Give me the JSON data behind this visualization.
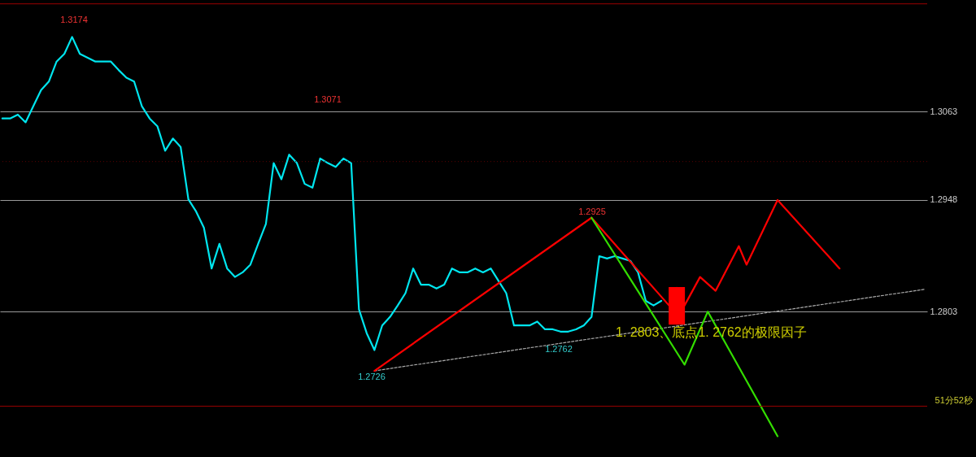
{
  "chart_data": {
    "type": "line",
    "ylim": [
      1.2614,
      1.3208
    ],
    "yticks": [
      1.2803,
      1.2948,
      1.3063
    ],
    "grid": "y",
    "tick_labels": "y",
    "categories": [
      null,
      null,
      null,
      null,
      null,
      null,
      null,
      null,
      null,
      null,
      null,
      null,
      null,
      null,
      null,
      null,
      null,
      null,
      null,
      null,
      null,
      null,
      null,
      null,
      null,
      null,
      null,
      null,
      null,
      null,
      null,
      null,
      null,
      null,
      null,
      null,
      null,
      null,
      null,
      null,
      null,
      null,
      null,
      null,
      null,
      null,
      null,
      null,
      null,
      null,
      null,
      null,
      null,
      null,
      null,
      null,
      null,
      null,
      null,
      null,
      null,
      null,
      null,
      null,
      null,
      null,
      null,
      null,
      null,
      null,
      null,
      null,
      null,
      null,
      null,
      null,
      null,
      null,
      null,
      null,
      null,
      null,
      null,
      null,
      null,
      null,
      null,
      null,
      null,
      null,
      null,
      null,
      null,
      null,
      null,
      null,
      null,
      null,
      null,
      null,
      null,
      null,
      null,
      null,
      null,
      null,
      null,
      null,
      null,
      null,
      null,
      null,
      null,
      null,
      null,
      null,
      null,
      null,
      null,
      null
    ],
    "series": [
      {
        "color": "#00e5ee",
        "values": [
          1.3054,
          1.3054,
          1.3059,
          1.3049,
          1.307,
          1.3091,
          1.3102,
          1.3128,
          1.3138,
          1.316,
          1.3138,
          1.3133,
          1.3128,
          1.3128,
          1.3128,
          1.3117,
          1.3107,
          1.3102,
          1.307,
          1.3054,
          1.3044,
          1.3012,
          1.3028,
          1.3017,
          1.2949,
          1.2933,
          1.2912,
          1.2859,
          1.2891,
          1.2859,
          1.2848,
          1.2854,
          1.2864,
          1.2891,
          1.2917,
          1.2996,
          1.2975,
          1.3007,
          1.2996,
          1.2969,
          1.2964,
          1.3002,
          1.2996,
          1.2991,
          1.3002,
          1.2996,
          1.2806,
          1.2775,
          1.2753,
          1.2785,
          1.2796,
          1.2811,
          1.2827,
          1.2859,
          1.2838,
          1.2838,
          1.2833,
          1.2838,
          1.2859,
          1.2854,
          1.2854,
          1.2859,
          1.2854,
          1.2859,
          1.2843,
          1.2827,
          1.2785,
          1.2785,
          1.2785,
          1.279,
          1.278,
          1.278,
          1.2777,
          1.2777,
          1.278,
          1.2785,
          1.2796,
          1.2875,
          1.2872,
          1.2875,
          1.2872,
          1.2869,
          1.2854,
          1.2817,
          1.2811,
          1.2817,
          null,
          null,
          null,
          null,
          null,
          null,
          null,
          null,
          null,
          null,
          null,
          null,
          null,
          null,
          null,
          null,
          null,
          null,
          null,
          null,
          null,
          null,
          null,
          null,
          null,
          null,
          null,
          null,
          null,
          null,
          null,
          null,
          null,
          null
        ]
      },
      {
        "type": "line",
        "color": "#aaaaaa",
        "line_style": "dashed",
        "values": [
          null,
          null,
          null,
          null,
          null,
          null,
          null,
          null,
          null,
          null,
          null,
          null,
          null,
          null,
          null,
          null,
          null,
          null,
          null,
          null,
          null,
          null,
          null,
          null,
          null,
          null,
          null,
          null,
          null,
          null,
          null,
          null,
          null,
          null,
          null,
          null,
          null,
          null,
          null,
          null,
          null,
          null,
          null,
          null,
          null,
          null,
          null,
          null,
          1.2726,
          null,
          null,
          null,
          null,
          null,
          null,
          null,
          null,
          null,
          null,
          null,
          null,
          null,
          null,
          null,
          null,
          null,
          null,
          null,
          null,
          null,
          null,
          null,
          null,
          null,
          null,
          null,
          null,
          null,
          null,
          null,
          null,
          null,
          null,
          null,
          null,
          null,
          null,
          null,
          null,
          null,
          null,
          null,
          null,
          null,
          null,
          null,
          null,
          null,
          null,
          null,
          null,
          null,
          null,
          null,
          null,
          null,
          null,
          null,
          null,
          null,
          null,
          null,
          null,
          null,
          null,
          null,
          null,
          null,
          null,
          1.2832
        ]
      },
      {
        "type": "line",
        "color": "#ff0000",
        "values": [
          null,
          null,
          null,
          null,
          null,
          null,
          null,
          null,
          null,
          null,
          null,
          null,
          null,
          null,
          null,
          null,
          null,
          null,
          null,
          null,
          null,
          null,
          null,
          null,
          null,
          null,
          null,
          null,
          null,
          null,
          null,
          null,
          null,
          null,
          null,
          null,
          null,
          null,
          null,
          null,
          null,
          null,
          null,
          null,
          null,
          null,
          null,
          null,
          1.2726,
          null,
          null,
          null,
          null,
          null,
          null,
          null,
          null,
          null,
          null,
          null,
          null,
          null,
          null,
          null,
          null,
          null,
          null,
          null,
          null,
          null,
          null,
          null,
          null,
          null,
          null,
          null,
          1.2925,
          null,
          null,
          null,
          null,
          null,
          null,
          null,
          null,
          null,
          1.2811,
          null,
          1.2811,
          null,
          1.2848,
          null,
          1.283,
          null,
          null,
          1.2888,
          1.2864,
          null,
          null,
          null,
          1.2948,
          null,
          null,
          null,
          null,
          null,
          null,
          null,
          1.2859,
          null,
          null,
          null,
          null,
          null,
          null,
          null,
          null,
          null,
          null,
          null
        ]
      },
      {
        "type": "line",
        "color": "#33dd00",
        "values": [
          null,
          null,
          null,
          null,
          null,
          null,
          null,
          null,
          null,
          null,
          null,
          null,
          null,
          null,
          null,
          null,
          null,
          null,
          null,
          null,
          null,
          null,
          null,
          null,
          null,
          null,
          null,
          null,
          null,
          null,
          null,
          null,
          null,
          null,
          null,
          null,
          null,
          null,
          null,
          null,
          null,
          null,
          null,
          null,
          null,
          null,
          null,
          null,
          null,
          null,
          null,
          null,
          null,
          null,
          null,
          null,
          null,
          null,
          null,
          null,
          null,
          null,
          null,
          null,
          null,
          null,
          null,
          null,
          null,
          null,
          null,
          null,
          null,
          null,
          null,
          null,
          1.2925,
          null,
          null,
          null,
          null,
          null,
          null,
          null,
          null,
          null,
          null,
          null,
          1.2734,
          null,
          null,
          1.2803,
          null,
          null,
          null,
          null,
          null,
          null,
          null,
          null,
          1.2641,
          null,
          null,
          null,
          null,
          null,
          null,
          null,
          null,
          null,
          null,
          null,
          null,
          null,
          null,
          null,
          null,
          null,
          null,
          null
        ]
      },
      {
        "type": "candlestick",
        "color": "#ff0000",
        "ohlc": [
          null,
          null,
          null,
          null,
          null,
          null,
          null,
          null,
          null,
          null,
          null,
          null,
          null,
          null,
          null,
          null,
          null,
          null,
          null,
          null,
          null,
          null,
          null,
          null,
          null,
          null,
          null,
          null,
          null,
          null,
          null,
          null,
          null,
          null,
          null,
          null,
          null,
          null,
          null,
          null,
          null,
          null,
          null,
          null,
          null,
          null,
          null,
          null,
          null,
          null,
          null,
          null,
          null,
          null,
          null,
          null,
          null,
          null,
          null,
          null,
          null,
          null,
          null,
          null,
          null,
          null,
          null,
          null,
          null,
          null,
          null,
          null,
          null,
          null,
          null,
          null,
          null,
          null,
          null,
          null,
          null,
          null,
          null,
          null,
          null,
          null,
          null,
          [
            1.2786,
            1.2835,
            1.2786,
            1.2835
          ],
          null,
          null,
          null,
          null,
          null,
          null,
          null,
          null,
          null,
          null,
          null,
          null,
          null,
          null,
          null,
          null,
          null,
          null,
          null,
          null,
          null,
          null,
          null,
          null,
          null,
          null,
          null,
          null,
          null,
          null,
          null,
          null
        ]
      }
    ],
    "ref_lines": [
      {
        "axis": "y",
        "value": 1.2998,
        "color": "#5a0000",
        "line_style": "dotted"
      },
      {
        "axis": "y",
        "value": 1.3203,
        "color": "#9a0000",
        "line_style": "solid"
      },
      {
        "axis": "y",
        "value": 1.268,
        "label": "51分52秒",
        "color": "#9a0000",
        "line_style": "solid"
      }
    ],
    "annotations": [
      "1.3174",
      "1.3071",
      "1.2925",
      "1.2726",
      "1.2762",
      "1. 2803、底点1. 2762的极限因子"
    ]
  }
}
